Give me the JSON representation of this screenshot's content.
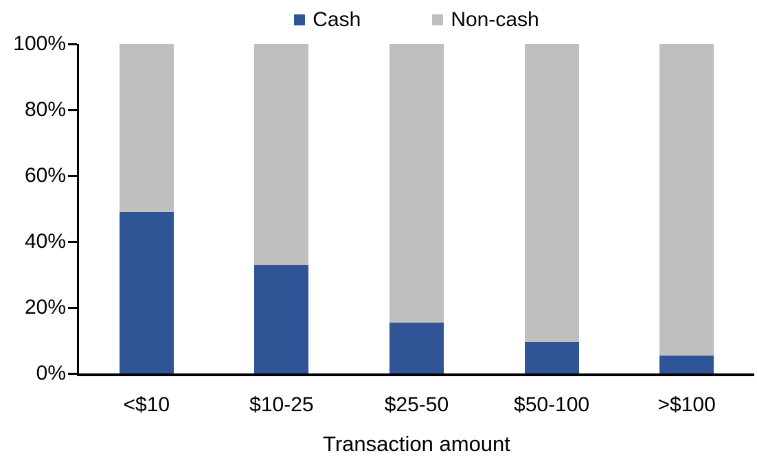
{
  "chart_data": {
    "type": "bar",
    "variant": "stacked-100-percent-column",
    "title": "",
    "xlabel": "Transaction amount",
    "ylabel": "",
    "categories": [
      "<$10",
      "$10-25",
      "$25-50",
      "$50-100",
      ">$100"
    ],
    "series": [
      {
        "name": "Cash",
        "color": "#2F5597",
        "values": [
          49,
          33,
          15.5,
          9.5,
          5.5
        ]
      },
      {
        "name": "Non-cash",
        "color": "#BFBFBF",
        "values": [
          51,
          67,
          84.5,
          90.5,
          94.5
        ]
      }
    ],
    "ylim": [
      0,
      100
    ],
    "yticks": [
      "0%",
      "20%",
      "40%",
      "60%",
      "80%",
      "100%"
    ],
    "grid": "off",
    "legend_position": "top-center",
    "axis_color": "#000000",
    "background_color": "#FFFFFF"
  }
}
